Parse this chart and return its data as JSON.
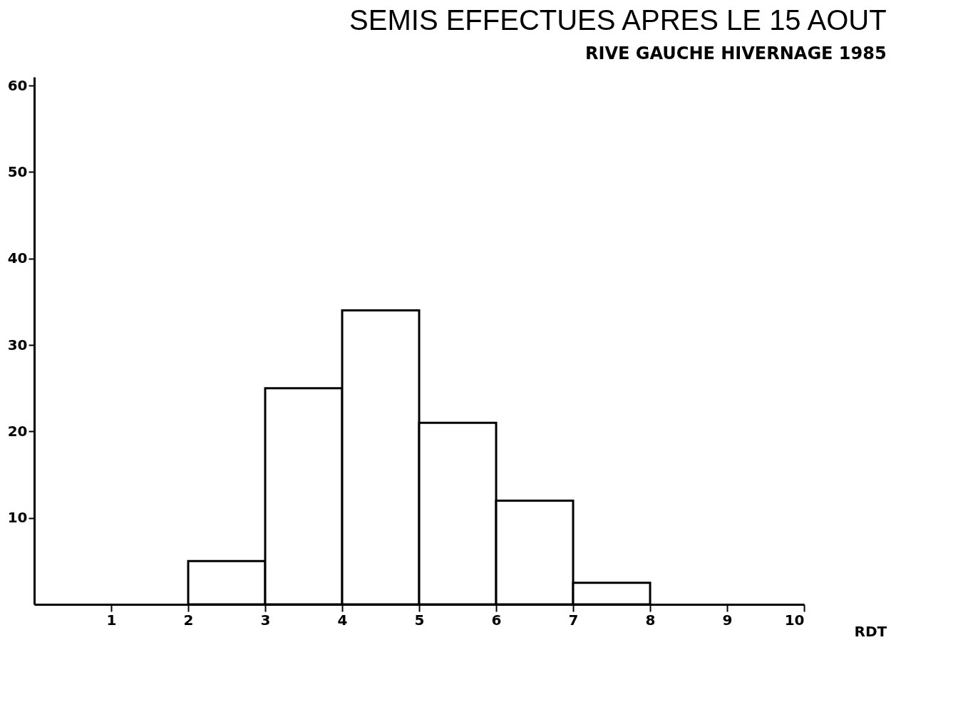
{
  "chart_data": {
    "type": "histogram",
    "title": "SEMIS EFFECTUES APRES LE 15 AOUT",
    "subtitle": "RIVE GAUCHE   HIVERNAGE 1985",
    "xlabel": "RDT",
    "bins": [
      2,
      3,
      4,
      5,
      6,
      7,
      8
    ],
    "values": [
      5,
      25,
      34,
      21,
      12,
      2.5
    ],
    "color": "#ffffff",
    "xlim": [
      0,
      10
    ],
    "xticks": [
      1,
      2,
      3,
      4,
      5,
      6,
      7,
      8,
      9,
      10
    ],
    "ylim": [
      0,
      61
    ],
    "yticks": [
      10,
      20,
      30,
      40,
      50,
      60
    ],
    "grid": false
  }
}
